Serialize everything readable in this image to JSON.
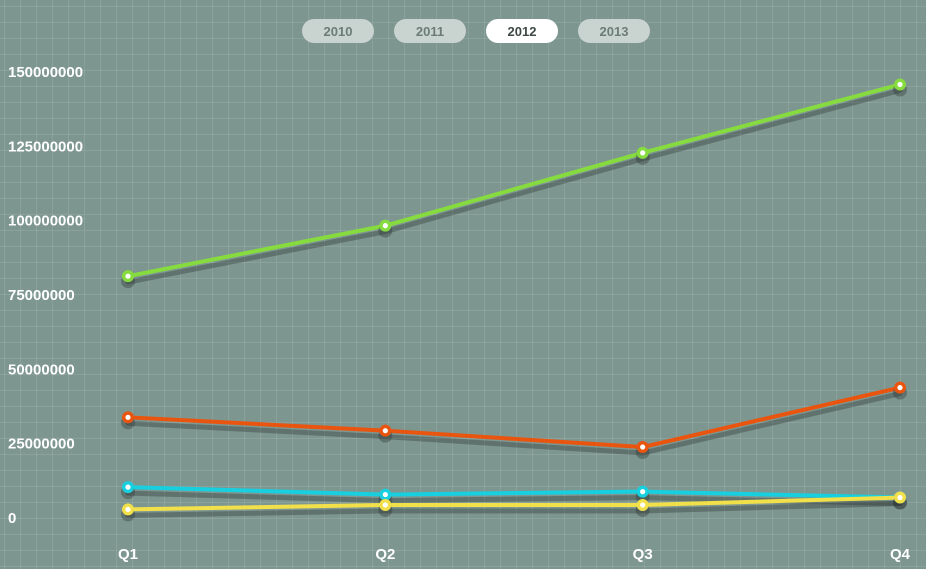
{
  "tabs": [
    {
      "label": "2010",
      "active": false
    },
    {
      "label": "2011",
      "active": false
    },
    {
      "label": "2012",
      "active": true
    },
    {
      "label": "2013",
      "active": false
    }
  ],
  "colors": {
    "background": "#7e9690",
    "green": "#86dc3e",
    "orange": "#e9550f",
    "cyan": "#18cfdf",
    "yellow": "#f1e04a"
  },
  "chart_data": {
    "type": "line",
    "categories": [
      "Q1",
      "Q2",
      "Q3",
      "Q4"
    ],
    "ylim": [
      -12500000,
      162500000
    ],
    "yticks": [
      0,
      25000000,
      50000000,
      75000000,
      100000000,
      125000000,
      150000000
    ],
    "ytick_labels": [
      "0",
      "25000000",
      "50000000",
      "75000000",
      "100000000",
      "125000000",
      "150000000"
    ],
    "grid": true,
    "legend": "none",
    "series": [
      {
        "color": "#86dc3e",
        "values": [
          81000000,
          98000000,
          122500000,
          145500000
        ]
      },
      {
        "color": "#e9550f",
        "values": [
          33500000,
          29000000,
          23500000,
          43500000
        ]
      },
      {
        "color": "#18cfdf",
        "values": [
          10000000,
          7500000,
          8500000,
          6500000
        ]
      },
      {
        "color": "#f1e04a",
        "values": [
          2500000,
          4000000,
          4000000,
          6500000
        ]
      }
    ]
  }
}
